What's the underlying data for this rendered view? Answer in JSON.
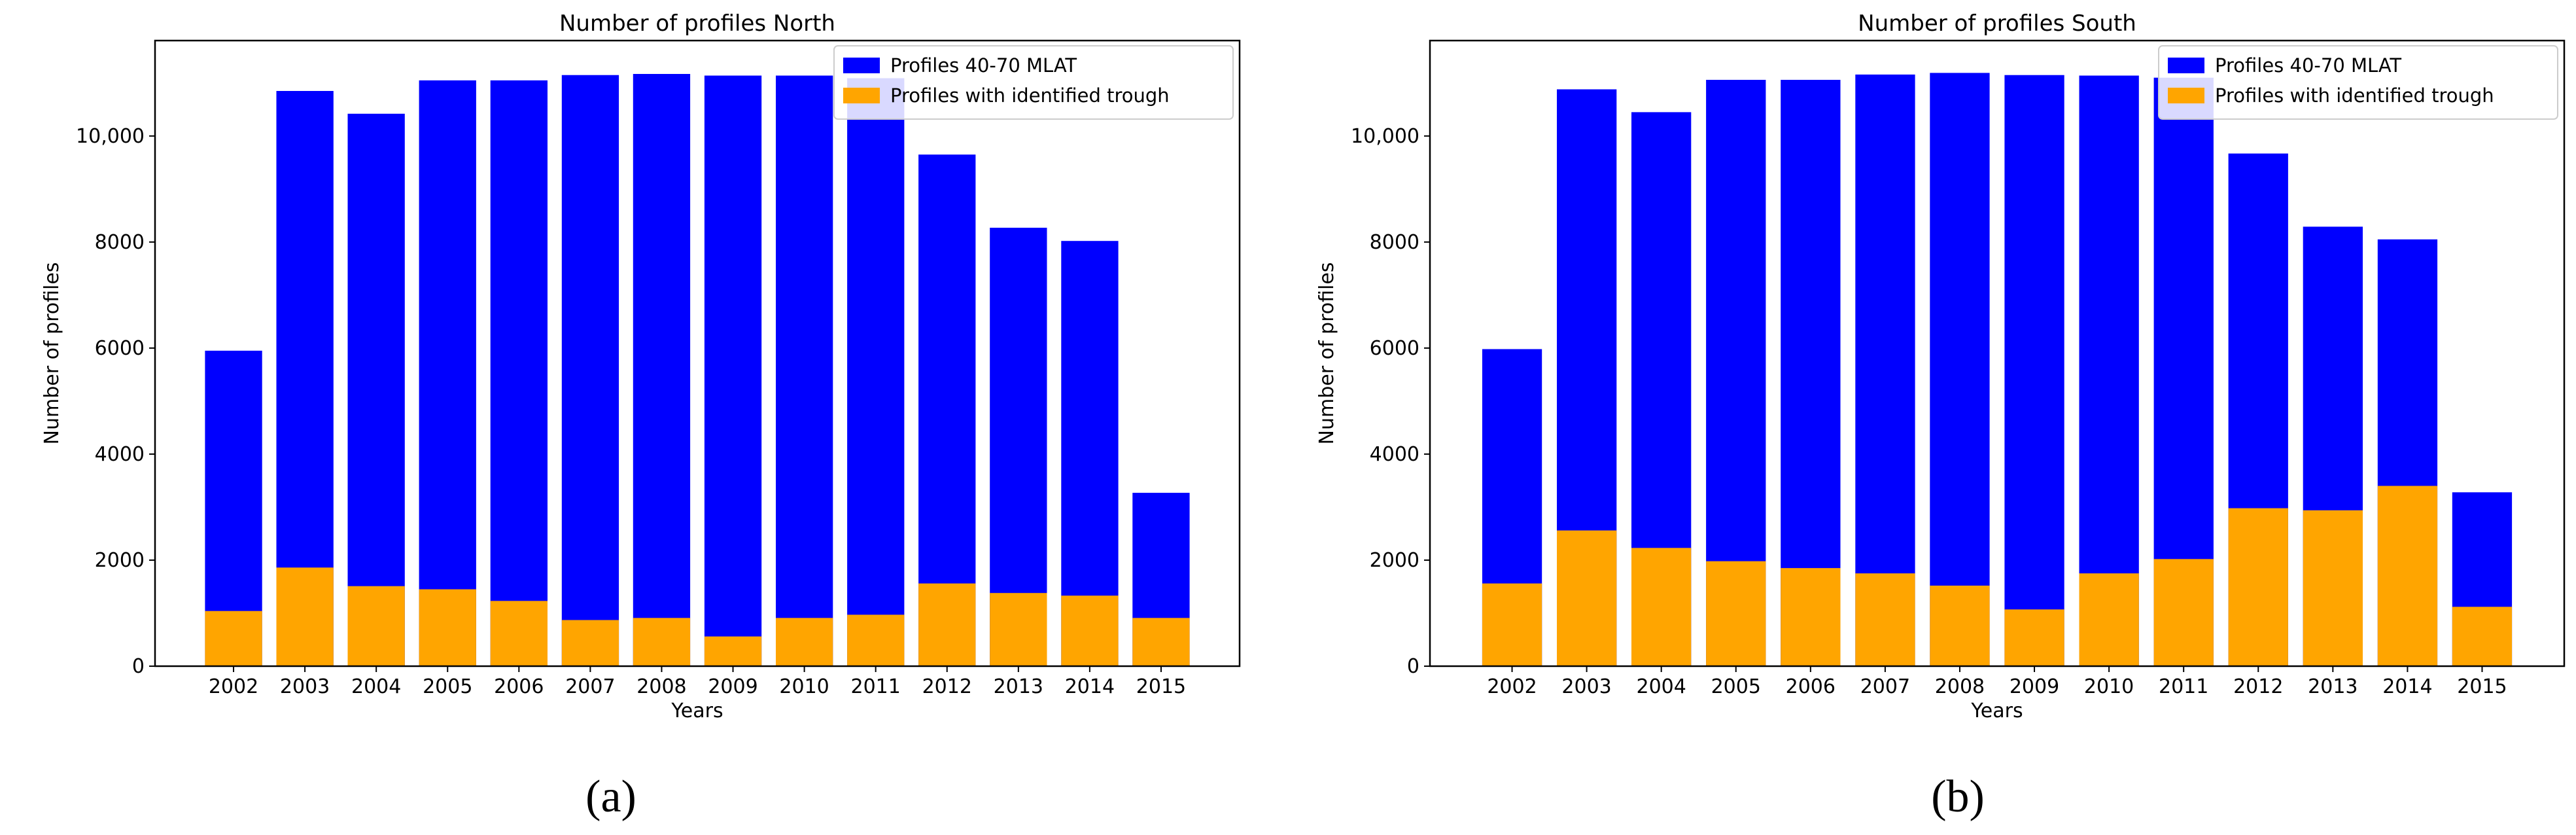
{
  "chart_data": [
    {
      "type": "bar",
      "panel_label": "(a)",
      "title": "Number of profiles North",
      "xlabel": "Years",
      "ylabel": "Number of profiles",
      "ylim": [
        0,
        11800
      ],
      "yticks": [
        0,
        2000,
        4000,
        6000,
        8000,
        10000
      ],
      "ytick_labels": [
        "0",
        "2000",
        "4000",
        "6000",
        "8000",
        "10,000"
      ],
      "legend_position": "top-right",
      "categories": [
        "2002",
        "2003",
        "2004",
        "2005",
        "2006",
        "2007",
        "2008",
        "2009",
        "2010",
        "2011",
        "2012",
        "2013",
        "2014",
        "2015"
      ],
      "series": [
        {
          "name": "Profiles 40-70 MLAT",
          "color": "#0000ff",
          "values": [
            5950,
            10850,
            10420,
            11050,
            11050,
            11150,
            11170,
            11140,
            11140,
            11090,
            9650,
            8270,
            8020,
            3270
          ]
        },
        {
          "name": "Profiles with identified trough",
          "color": "#ffa500",
          "values": [
            1040,
            1860,
            1510,
            1450,
            1230,
            870,
            910,
            560,
            910,
            970,
            1560,
            1380,
            1330,
            910
          ]
        }
      ]
    },
    {
      "type": "bar",
      "panel_label": "(b)",
      "title": "Number of profiles South",
      "xlabel": "Years",
      "ylabel": "Number of profiles",
      "ylim": [
        0,
        11800
      ],
      "yticks": [
        0,
        2000,
        4000,
        6000,
        8000,
        10000
      ],
      "ytick_labels": [
        "0",
        "2000",
        "4000",
        "6000",
        "8000",
        "10,000"
      ],
      "legend_position": "top-right",
      "categories": [
        "2002",
        "2003",
        "2004",
        "2005",
        "2006",
        "2007",
        "2008",
        "2009",
        "2010",
        "2011",
        "2012",
        "2013",
        "2014",
        "2015"
      ],
      "series": [
        {
          "name": "Profiles 40-70 MLAT",
          "color": "#0000ff",
          "values": [
            5980,
            10880,
            10450,
            11060,
            11060,
            11160,
            11190,
            11150,
            11140,
            11100,
            9670,
            8290,
            8050,
            3280
          ]
        },
        {
          "name": "Profiles with identified trough",
          "color": "#ffa500",
          "values": [
            1560,
            2560,
            2230,
            1980,
            1850,
            1750,
            1520,
            1070,
            1750,
            2020,
            2980,
            2940,
            3400,
            1120
          ]
        }
      ]
    }
  ]
}
